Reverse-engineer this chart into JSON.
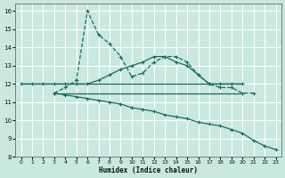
{
  "bg_color": "#c8e8e0",
  "grid_color": "#ffffff",
  "line_color": "#1a6b5a",
  "xlabel": "Humidex (Indice chaleur)",
  "xlim": [
    -0.5,
    23.5
  ],
  "ylim": [
    8,
    16.4
  ],
  "xticks": [
    0,
    1,
    2,
    3,
    4,
    5,
    6,
    7,
    8,
    9,
    10,
    11,
    12,
    13,
    14,
    15,
    16,
    17,
    18,
    19,
    20,
    21,
    22,
    23
  ],
  "yticks": [
    8,
    9,
    10,
    11,
    12,
    13,
    14,
    15,
    16
  ],
  "series": [
    {
      "x": [
        0,
        1,
        2,
        3,
        4,
        5,
        6,
        7,
        8,
        9,
        10,
        11,
        12,
        13,
        14,
        15,
        16,
        17,
        18,
        19,
        20
      ],
      "y": [
        12,
        12,
        12,
        12,
        12,
        12,
        12,
        12,
        12,
        12,
        12,
        12,
        12,
        12,
        12,
        12,
        12,
        12,
        12,
        12,
        12
      ],
      "linestyle": "-",
      "marker": false
    },
    {
      "x": [
        3,
        4,
        5,
        6,
        7,
        8,
        9,
        10,
        11,
        12,
        13,
        14,
        15,
        16,
        17,
        18,
        19,
        20
      ],
      "y": [
        11.5,
        11.5,
        11.5,
        11.5,
        11.5,
        11.5,
        11.5,
        11.5,
        11.5,
        11.5,
        11.5,
        11.5,
        11.5,
        11.5,
        11.5,
        11.5,
        11.5,
        11.5
      ],
      "linestyle": "-",
      "marker": false
    },
    {
      "x": [
        3,
        4,
        5,
        6,
        7,
        8,
        9,
        10,
        11,
        12,
        13,
        14,
        15,
        16,
        17,
        18,
        19,
        20,
        21
      ],
      "y": [
        11.5,
        11.8,
        12.2,
        16.0,
        14.7,
        14.2,
        13.5,
        12.4,
        12.6,
        13.2,
        13.5,
        13.5,
        13.2,
        12.5,
        12.0,
        11.8,
        11.8,
        11.5,
        11.5
      ],
      "linestyle": "--",
      "marker": true
    },
    {
      "x": [
        0,
        1,
        2,
        3,
        4,
        5,
        6,
        7,
        8,
        9,
        10,
        11,
        12,
        13,
        14,
        15,
        16,
        17,
        18,
        19,
        20
      ],
      "y": [
        12,
        12,
        12,
        12,
        12,
        12,
        12.0,
        12.2,
        12.5,
        12.8,
        13.0,
        13.2,
        13.5,
        13.5,
        13.2,
        13.0,
        12.5,
        12.0,
        12.0,
        12.0,
        12.0
      ],
      "linestyle": "-",
      "marker": true
    },
    {
      "x": [
        3,
        4,
        5,
        6,
        7,
        8,
        9,
        10,
        11,
        12,
        13,
        14,
        15,
        16,
        17,
        18,
        19,
        20,
        21,
        22,
        23
      ],
      "y": [
        11.5,
        11.4,
        11.3,
        11.2,
        11.1,
        11.0,
        10.9,
        10.7,
        10.6,
        10.5,
        10.3,
        10.2,
        10.1,
        9.9,
        9.8,
        9.7,
        9.5,
        9.3,
        8.9,
        8.6,
        8.4
      ],
      "linestyle": "-",
      "marker": true
    }
  ]
}
